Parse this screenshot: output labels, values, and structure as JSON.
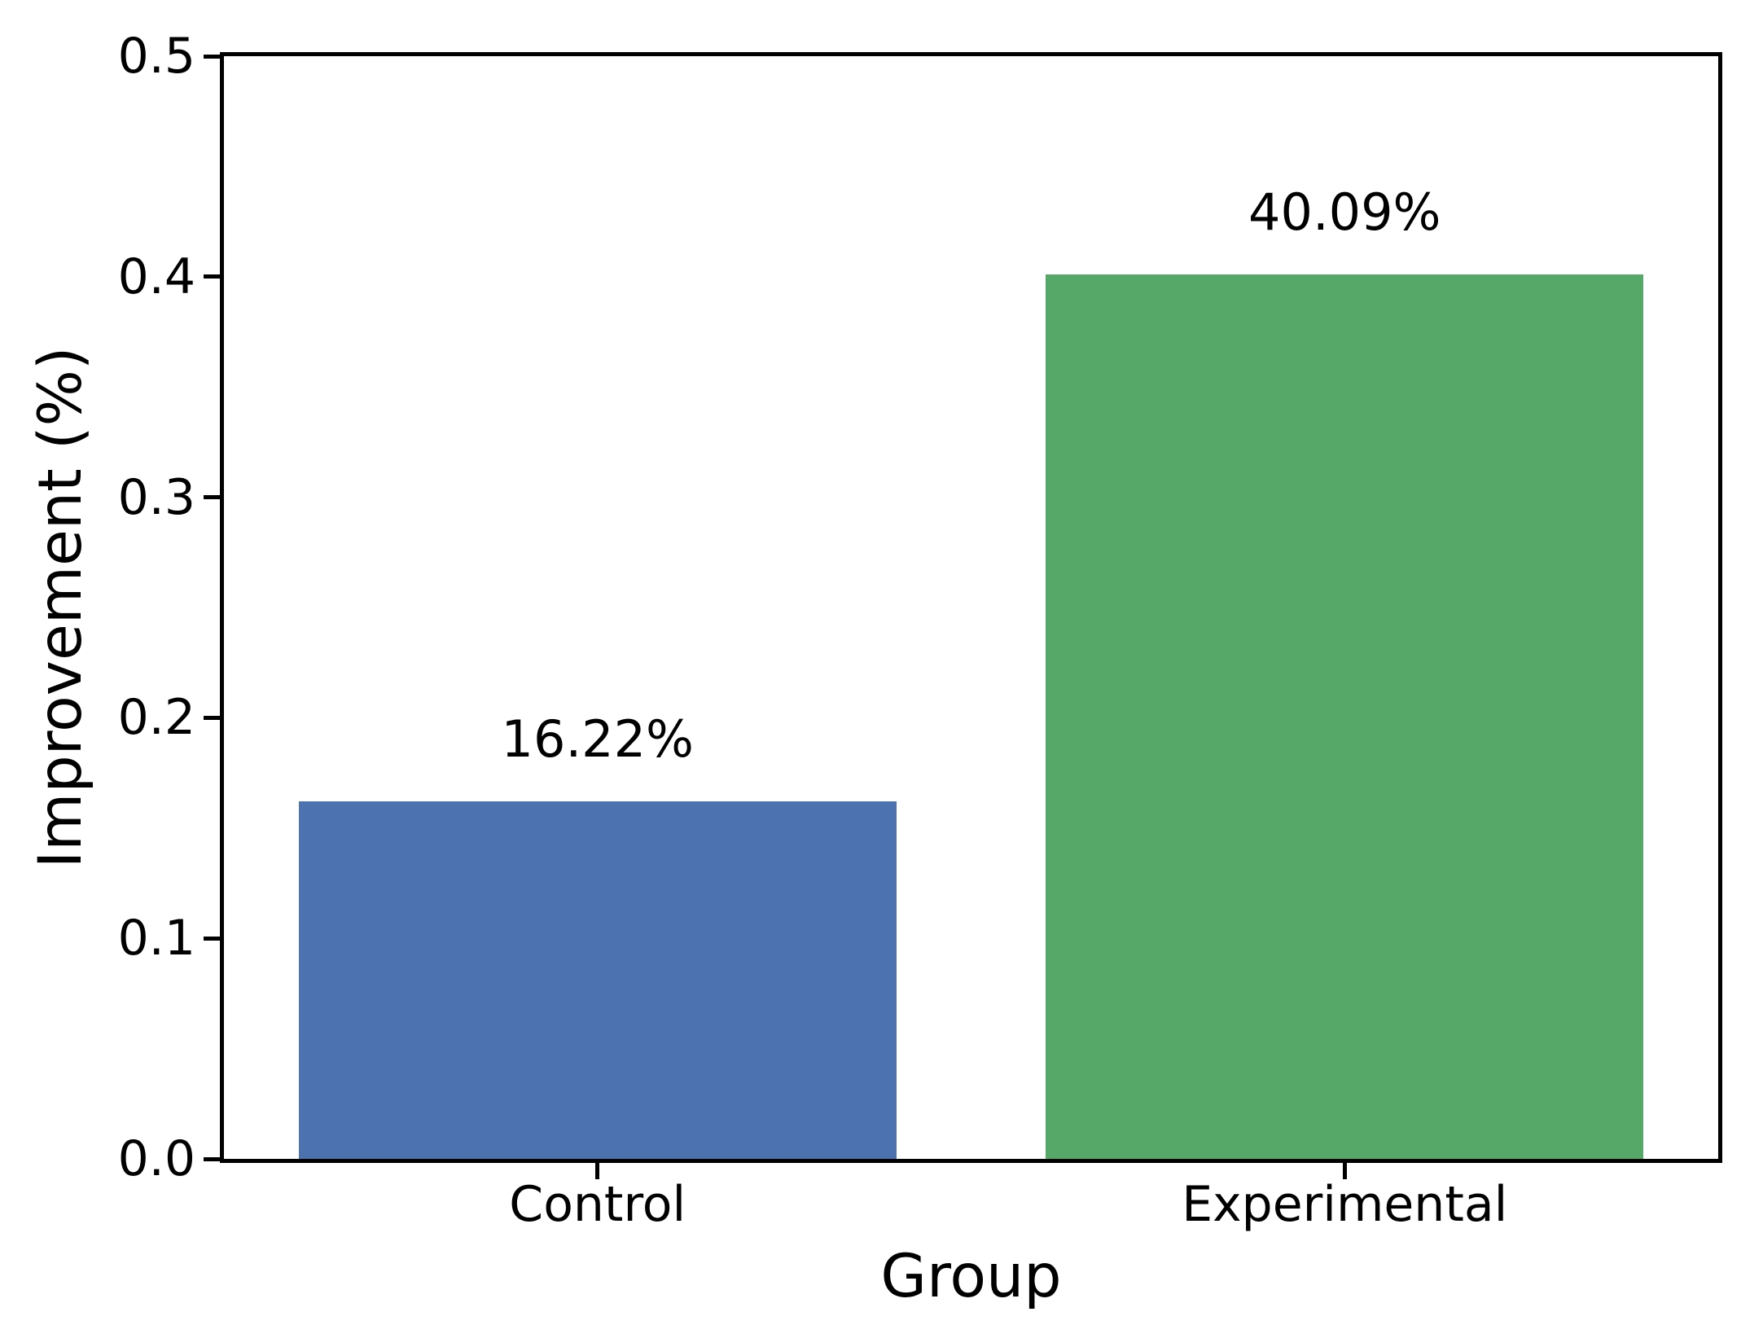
{
  "chart_data": {
    "type": "bar",
    "title": "",
    "xlabel": "Group",
    "ylabel": "Improvement (%)",
    "categories": [
      "Control",
      "Experimental"
    ],
    "values": [
      0.1622,
      0.4009
    ],
    "bar_labels": [
      "16.22%",
      "40.09%"
    ],
    "bar_colors": [
      "#4C72B0",
      "#55A868"
    ],
    "bar_width_fraction": 0.8,
    "ylim": [
      0,
      0.5
    ],
    "yticks": [
      "0.0",
      "0.1",
      "0.2",
      "0.3",
      "0.4",
      "0.5"
    ],
    "grid": false,
    "legend_position": "none",
    "spine_color": "#000000",
    "background_color": "#ffffff"
  }
}
